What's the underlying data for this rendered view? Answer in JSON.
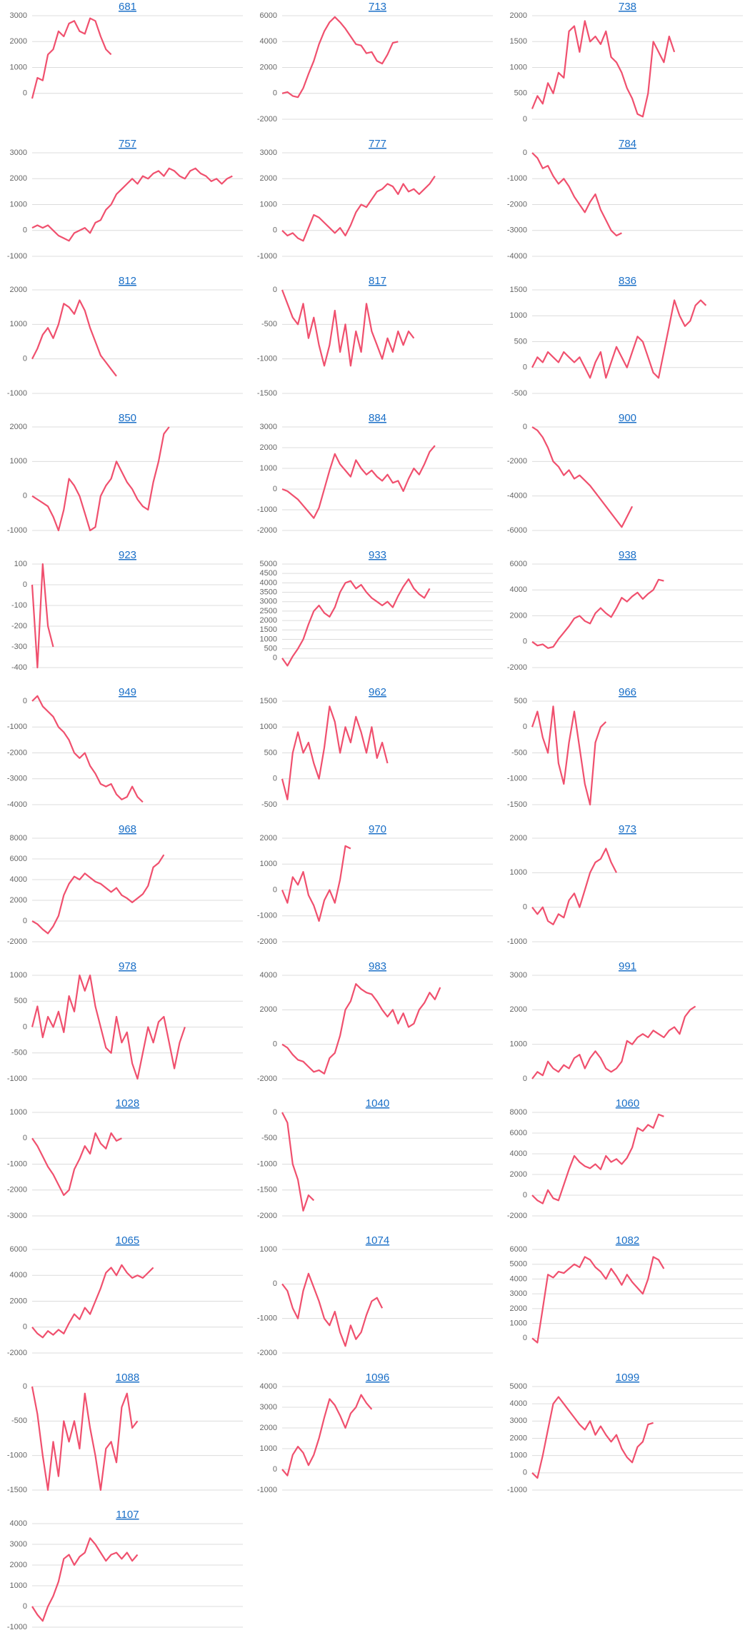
{
  "chart_data": [
    {
      "type": "line",
      "title": "681",
      "color": "#f0506e",
      "ylim": [
        -1000,
        3000
      ],
      "yticks": [
        0,
        1000,
        2000,
        3000
      ],
      "values": [
        -200,
        600,
        500,
        1500,
        1700,
        2400,
        2200,
        2700,
        2800,
        2400,
        2300,
        2900,
        2800,
        2200,
        1700,
        1500
      ]
    },
    {
      "type": "line",
      "title": "713",
      "color": "#f0506e",
      "ylim": [
        -2000,
        6000
      ],
      "yticks": [
        -2000,
        0,
        2000,
        4000,
        6000
      ],
      "values": [
        0,
        100,
        -200,
        -300,
        400,
        1500,
        2500,
        3800,
        4800,
        5500,
        5900,
        5500,
        5000,
        4400,
        3800,
        3700,
        3100,
        3200,
        2500,
        2300,
        3000,
        3900,
        4000
      ]
    },
    {
      "type": "line",
      "title": "738",
      "color": "#f0506e",
      "ylim": [
        0,
        2000
      ],
      "yticks": [
        0,
        500,
        1000,
        1500,
        2000
      ],
      "values": [
        200,
        450,
        300,
        700,
        500,
        900,
        800,
        1700,
        1800,
        1300,
        1900,
        1500,
        1600,
        1450,
        1700,
        1200,
        1100,
        900,
        600,
        400,
        100,
        50,
        500,
        1500,
        1300,
        1100,
        1600,
        1300
      ]
    },
    {
      "type": "line",
      "title": "757",
      "color": "#f0506e",
      "ylim": [
        -1000,
        3000
      ],
      "yticks": [
        -1000,
        0,
        1000,
        2000,
        3000
      ],
      "values": [
        100,
        200,
        100,
        200,
        0,
        -200,
        -300,
        -400,
        -100,
        0,
        100,
        -100,
        300,
        400,
        800,
        1000,
        1400,
        1600,
        1800,
        2000,
        1800,
        2100,
        2000,
        2200,
        2300,
        2100,
        2400,
        2300,
        2100,
        2000,
        2300,
        2400,
        2200,
        2100,
        1900,
        2000,
        1800,
        2000,
        2100
      ]
    },
    {
      "type": "line",
      "title": "777",
      "color": "#f0506e",
      "ylim": [
        -1000,
        3000
      ],
      "yticks": [
        -1000,
        0,
        1000,
        2000,
        3000
      ],
      "values": [
        0,
        -200,
        -100,
        -300,
        -400,
        100,
        600,
        500,
        300,
        100,
        -100,
        100,
        -200,
        200,
        700,
        1000,
        900,
        1200,
        1500,
        1600,
        1800,
        1700,
        1400,
        1800,
        1500,
        1600,
        1400,
        1600,
        1800,
        2100
      ]
    },
    {
      "type": "line",
      "title": "784",
      "color": "#f0506e",
      "ylim": [
        -4000,
        0
      ],
      "yticks": [
        -4000,
        -3000,
        -2000,
        -1000,
        0
      ],
      "values": [
        0,
        -200,
        -600,
        -500,
        -900,
        -1200,
        -1000,
        -1300,
        -1700,
        -2000,
        -2300,
        -1900,
        -1600,
        -2200,
        -2600,
        -3000,
        -3200,
        -3100
      ]
    },
    {
      "type": "line",
      "title": "812",
      "color": "#f0506e",
      "ylim": [
        -1000,
        2000
      ],
      "yticks": [
        -1000,
        0,
        1000,
        2000
      ],
      "values": [
        0,
        300,
        700,
        900,
        600,
        1000,
        1600,
        1500,
        1300,
        1700,
        1400,
        900,
        500,
        100,
        -100,
        -300,
        -500
      ]
    },
    {
      "type": "line",
      "title": "817",
      "color": "#f0506e",
      "ylim": [
        -1500,
        0
      ],
      "yticks": [
        -1500,
        -1000,
        -500,
        0
      ],
      "values": [
        0,
        -200,
        -400,
        -500,
        -200,
        -700,
        -400,
        -800,
        -1100,
        -800,
        -300,
        -900,
        -500,
        -1100,
        -600,
        -900,
        -200,
        -600,
        -800,
        -1000,
        -700,
        -900,
        -600,
        -800,
        -600,
        -700
      ]
    },
    {
      "type": "line",
      "title": "836",
      "color": "#f0506e",
      "ylim": [
        -500,
        1500
      ],
      "yticks": [
        -500,
        0,
        500,
        1000,
        1500
      ],
      "values": [
        0,
        200,
        100,
        300,
        200,
        100,
        300,
        200,
        100,
        200,
        0,
        -200,
        100,
        300,
        -200,
        100,
        400,
        200,
        0,
        300,
        600,
        500,
        200,
        -100,
        -200,
        300,
        800,
        1300,
        1000,
        800,
        900,
        1200,
        1300,
        1200
      ]
    },
    {
      "type": "line",
      "title": "850",
      "color": "#f0506e",
      "ylim": [
        -1000,
        2000
      ],
      "yticks": [
        -1000,
        0,
        1000,
        2000
      ],
      "values": [
        0,
        -100,
        -200,
        -300,
        -600,
        -1000,
        -400,
        500,
        300,
        0,
        -500,
        -1000,
        -900,
        0,
        300,
        500,
        1000,
        700,
        400,
        200,
        -100,
        -300,
        -400,
        400,
        1000,
        1800,
        2000
      ]
    },
    {
      "type": "line",
      "title": "884",
      "color": "#f0506e",
      "ylim": [
        -2000,
        3000
      ],
      "yticks": [
        -2000,
        -1000,
        0,
        1000,
        2000,
        3000
      ],
      "values": [
        0,
        -100,
        -300,
        -500,
        -800,
        -1100,
        -1400,
        -900,
        0,
        900,
        1700,
        1200,
        900,
        600,
        1400,
        1000,
        700,
        900,
        600,
        400,
        700,
        300,
        400,
        -100,
        500,
        1000,
        700,
        1200,
        1800,
        2100
      ]
    },
    {
      "type": "line",
      "title": "900",
      "color": "#f0506e",
      "ylim": [
        -6000,
        0
      ],
      "yticks": [
        -6000,
        -4000,
        -2000,
        0
      ],
      "values": [
        0,
        -200,
        -600,
        -1200,
        -2000,
        -2300,
        -2800,
        -2500,
        -3000,
        -2800,
        -3100,
        -3400,
        -3800,
        -4200,
        -4600,
        -5000,
        -5400,
        -5800,
        -5200,
        -4600
      ]
    },
    {
      "type": "line",
      "title": "923",
      "color": "#f0506e",
      "ylim": [
        -400,
        100
      ],
      "yticks": [
        -400,
        -300,
        -200,
        -100,
        0,
        100
      ],
      "values": [
        0,
        -400,
        100,
        -200,
        -300
      ]
    },
    {
      "type": "line",
      "title": "933",
      "color": "#f0506e",
      "ylim": [
        -500,
        5000
      ],
      "yticks": [
        0,
        500,
        1000,
        1500,
        2000,
        2500,
        3000,
        3500,
        4000,
        4500,
        5000
      ],
      "values": [
        0,
        -400,
        100,
        500,
        1000,
        1800,
        2500,
        2800,
        2400,
        2200,
        2700,
        3500,
        4000,
        4100,
        3700,
        3900,
        3500,
        3200,
        3000,
        2800,
        3000,
        2700,
        3300,
        3800,
        4200,
        3700,
        3400,
        3200,
        3700
      ]
    },
    {
      "type": "line",
      "title": "938",
      "color": "#f0506e",
      "ylim": [
        -2000,
        6000
      ],
      "yticks": [
        -2000,
        0,
        2000,
        4000,
        6000
      ],
      "values": [
        0,
        -300,
        -200,
        -500,
        -400,
        200,
        700,
        1200,
        1800,
        2000,
        1600,
        1400,
        2200,
        2600,
        2200,
        1900,
        2600,
        3400,
        3100,
        3500,
        3800,
        3300,
        3700,
        4000,
        4800,
        4700
      ]
    },
    {
      "type": "line",
      "title": "949",
      "color": "#f0506e",
      "ylim": [
        -4000,
        0
      ],
      "yticks": [
        -4000,
        -3000,
        -2000,
        -1000,
        0
      ],
      "values": [
        0,
        200,
        -200,
        -400,
        -600,
        -1000,
        -1200,
        -1500,
        -2000,
        -2200,
        -2000,
        -2500,
        -2800,
        -3200,
        -3300,
        -3200,
        -3600,
        -3800,
        -3700,
        -3300,
        -3700,
        -3900
      ]
    },
    {
      "type": "line",
      "title": "962",
      "color": "#f0506e",
      "ylim": [
        -500,
        1500
      ],
      "yticks": [
        -500,
        0,
        500,
        1000,
        1500
      ],
      "values": [
        0,
        -400,
        500,
        900,
        500,
        700,
        300,
        0,
        600,
        1400,
        1100,
        500,
        1000,
        700,
        1200,
        900,
        500,
        1000,
        400,
        700,
        300
      ]
    },
    {
      "type": "line",
      "title": "966",
      "color": "#f0506e",
      "ylim": [
        -1500,
        500
      ],
      "yticks": [
        -1500,
        -1000,
        -500,
        0,
        500
      ],
      "values": [
        0,
        300,
        -200,
        -500,
        400,
        -700,
        -1100,
        -300,
        300,
        -400,
        -1100,
        -1500,
        -300,
        0,
        100
      ]
    },
    {
      "type": "line",
      "title": "968",
      "color": "#f0506e",
      "ylim": [
        -2000,
        8000
      ],
      "yticks": [
        -2000,
        0,
        2000,
        4000,
        6000,
        8000
      ],
      "values": [
        0,
        -300,
        -800,
        -1200,
        -500,
        500,
        2500,
        3600,
        4300,
        4000,
        4600,
        4200,
        3800,
        3600,
        3200,
        2800,
        3200,
        2500,
        2200,
        1800,
        2200,
        2600,
        3400,
        5200,
        5600,
        6400
      ]
    },
    {
      "type": "line",
      "title": "970",
      "color": "#f0506e",
      "ylim": [
        -2000,
        2000
      ],
      "yticks": [
        -2000,
        -1000,
        0,
        1000,
        2000
      ],
      "values": [
        0,
        -500,
        500,
        200,
        700,
        -200,
        -600,
        -1200,
        -400,
        0,
        -500,
        400,
        1700,
        1600
      ]
    },
    {
      "type": "line",
      "title": "973",
      "color": "#f0506e",
      "ylim": [
        -1000,
        2000
      ],
      "yticks": [
        -1000,
        0,
        1000,
        2000
      ],
      "values": [
        0,
        -200,
        0,
        -400,
        -500,
        -200,
        -300,
        200,
        400,
        0,
        500,
        1000,
        1300,
        1400,
        1700,
        1300,
        1000
      ]
    },
    {
      "type": "line",
      "title": "978",
      "color": "#f0506e",
      "ylim": [
        -1000,
        1000
      ],
      "yticks": [
        -1000,
        -500,
        0,
        500,
        1000
      ],
      "values": [
        0,
        400,
        -200,
        200,
        0,
        300,
        -100,
        600,
        300,
        1000,
        700,
        1000,
        400,
        0,
        -400,
        -500,
        200,
        -300,
        -100,
        -700,
        -1000,
        -500,
        0,
        -300,
        100,
        200,
        -300,
        -800,
        -300,
        0
      ]
    },
    {
      "type": "line",
      "title": "983",
      "color": "#f0506e",
      "ylim": [
        -2000,
        4000
      ],
      "yticks": [
        -2000,
        0,
        2000,
        4000
      ],
      "values": [
        0,
        -200,
        -600,
        -900,
        -1000,
        -1300,
        -1600,
        -1500,
        -1700,
        -800,
        -500,
        500,
        2000,
        2500,
        3500,
        3200,
        3000,
        2900,
        2500,
        2000,
        1600,
        2000,
        1200,
        1800,
        1000,
        1200,
        2000,
        2400,
        3000,
        2600,
        3300
      ]
    },
    {
      "type": "line",
      "title": "991",
      "color": "#f0506e",
      "ylim": [
        0,
        3000
      ],
      "yticks": [
        0,
        1000,
        2000,
        3000
      ],
      "values": [
        0,
        200,
        100,
        500,
        300,
        200,
        400,
        300,
        600,
        700,
        300,
        600,
        800,
        600,
        300,
        200,
        300,
        500,
        1100,
        1000,
        1200,
        1300,
        1200,
        1400,
        1300,
        1200,
        1400,
        1500,
        1300,
        1800,
        2000,
        2100
      ]
    },
    {
      "type": "line",
      "title": "1028",
      "color": "#f0506e",
      "ylim": [
        -3000,
        1000
      ],
      "yticks": [
        -3000,
        -2000,
        -1000,
        0,
        1000
      ],
      "values": [
        0,
        -300,
        -700,
        -1100,
        -1400,
        -1800,
        -2200,
        -2000,
        -1200,
        -800,
        -300,
        -600,
        200,
        -200,
        -400,
        200,
        -100,
        0
      ]
    },
    {
      "type": "line",
      "title": "1040",
      "color": "#f0506e",
      "ylim": [
        -2000,
        0
      ],
      "yticks": [
        -2000,
        -1500,
        -1000,
        -500,
        0
      ],
      "values": [
        0,
        -200,
        -1000,
        -1300,
        -1900,
        -1600,
        -1700
      ]
    },
    {
      "type": "line",
      "title": "1060",
      "color": "#f0506e",
      "ylim": [
        -2000,
        8000
      ],
      "yticks": [
        -2000,
        0,
        2000,
        4000,
        6000,
        8000
      ],
      "values": [
        0,
        -500,
        -800,
        500,
        -300,
        -500,
        1000,
        2500,
        3800,
        3200,
        2800,
        2600,
        3000,
        2500,
        3800,
        3200,
        3500,
        3000,
        3600,
        4600,
        6500,
        6200,
        6800,
        6500,
        7800,
        7600
      ]
    },
    {
      "type": "line",
      "title": "1065",
      "color": "#f0506e",
      "ylim": [
        -2000,
        6000
      ],
      "yticks": [
        -2000,
        0,
        2000,
        4000,
        6000
      ],
      "values": [
        0,
        -500,
        -800,
        -300,
        -600,
        -200,
        -500,
        300,
        1000,
        600,
        1500,
        1000,
        2000,
        3000,
        4200,
        4600,
        4000,
        4800,
        4200,
        3800,
        4000,
        3800,
        4200,
        4600
      ]
    },
    {
      "type": "line",
      "title": "1074",
      "color": "#f0506e",
      "ylim": [
        -2000,
        1000
      ],
      "yticks": [
        -2000,
        -1000,
        0,
        1000
      ],
      "values": [
        0,
        -200,
        -700,
        -1000,
        -200,
        300,
        -100,
        -500,
        -1000,
        -1200,
        -800,
        -1400,
        -1800,
        -1200,
        -1600,
        -1400,
        -900,
        -500,
        -400,
        -700
      ]
    },
    {
      "type": "line",
      "title": "1082",
      "color": "#f0506e",
      "ylim": [
        -1000,
        6000
      ],
      "yticks": [
        0,
        1000,
        2000,
        3000,
        4000,
        5000,
        6000
      ],
      "values": [
        0,
        -300,
        2000,
        4300,
        4100,
        4500,
        4400,
        4700,
        5000,
        4800,
        5500,
        5300,
        4800,
        4500,
        4000,
        4700,
        4200,
        3600,
        4300,
        3800,
        3400,
        3000,
        4000,
        5500,
        5300,
        4700
      ]
    },
    {
      "type": "line",
      "title": "1088",
      "color": "#f0506e",
      "ylim": [
        -1500,
        0
      ],
      "yticks": [
        -1500,
        -1000,
        -500,
        0
      ],
      "values": [
        0,
        -400,
        -1000,
        -1500,
        -800,
        -1300,
        -500,
        -800,
        -500,
        -900,
        -100,
        -600,
        -1000,
        -1500,
        -900,
        -800,
        -1100,
        -300,
        -100,
        -600,
        -500
      ]
    },
    {
      "type": "line",
      "title": "1096",
      "color": "#f0506e",
      "ylim": [
        -1000,
        4000
      ],
      "yticks": [
        -1000,
        0,
        1000,
        2000,
        3000,
        4000
      ],
      "values": [
        0,
        -300,
        700,
        1100,
        800,
        200,
        700,
        1500,
        2500,
        3400,
        3100,
        2600,
        2000,
        2700,
        3000,
        3600,
        3200,
        2900
      ]
    },
    {
      "type": "line",
      "title": "1099",
      "color": "#f0506e",
      "ylim": [
        -1000,
        5000
      ],
      "yticks": [
        -1000,
        0,
        1000,
        2000,
        3000,
        4000,
        5000
      ],
      "values": [
        0,
        -300,
        1000,
        2500,
        4000,
        4400,
        4000,
        3600,
        3200,
        2800,
        2500,
        3000,
        2200,
        2700,
        2200,
        1800,
        2200,
        1400,
        900,
        600,
        1500,
        1800,
        2800,
        2900
      ]
    },
    {
      "type": "line",
      "title": "1107",
      "color": "#f0506e",
      "ylim": [
        -1000,
        4000
      ],
      "yticks": [
        -1000,
        0,
        1000,
        2000,
        3000,
        4000
      ],
      "values": [
        0,
        -400,
        -700,
        0,
        500,
        1200,
        2300,
        2500,
        2000,
        2400,
        2600,
        3300,
        3000,
        2600,
        2200,
        2500,
        2600,
        2300,
        2600,
        2200,
        2500
      ]
    }
  ]
}
